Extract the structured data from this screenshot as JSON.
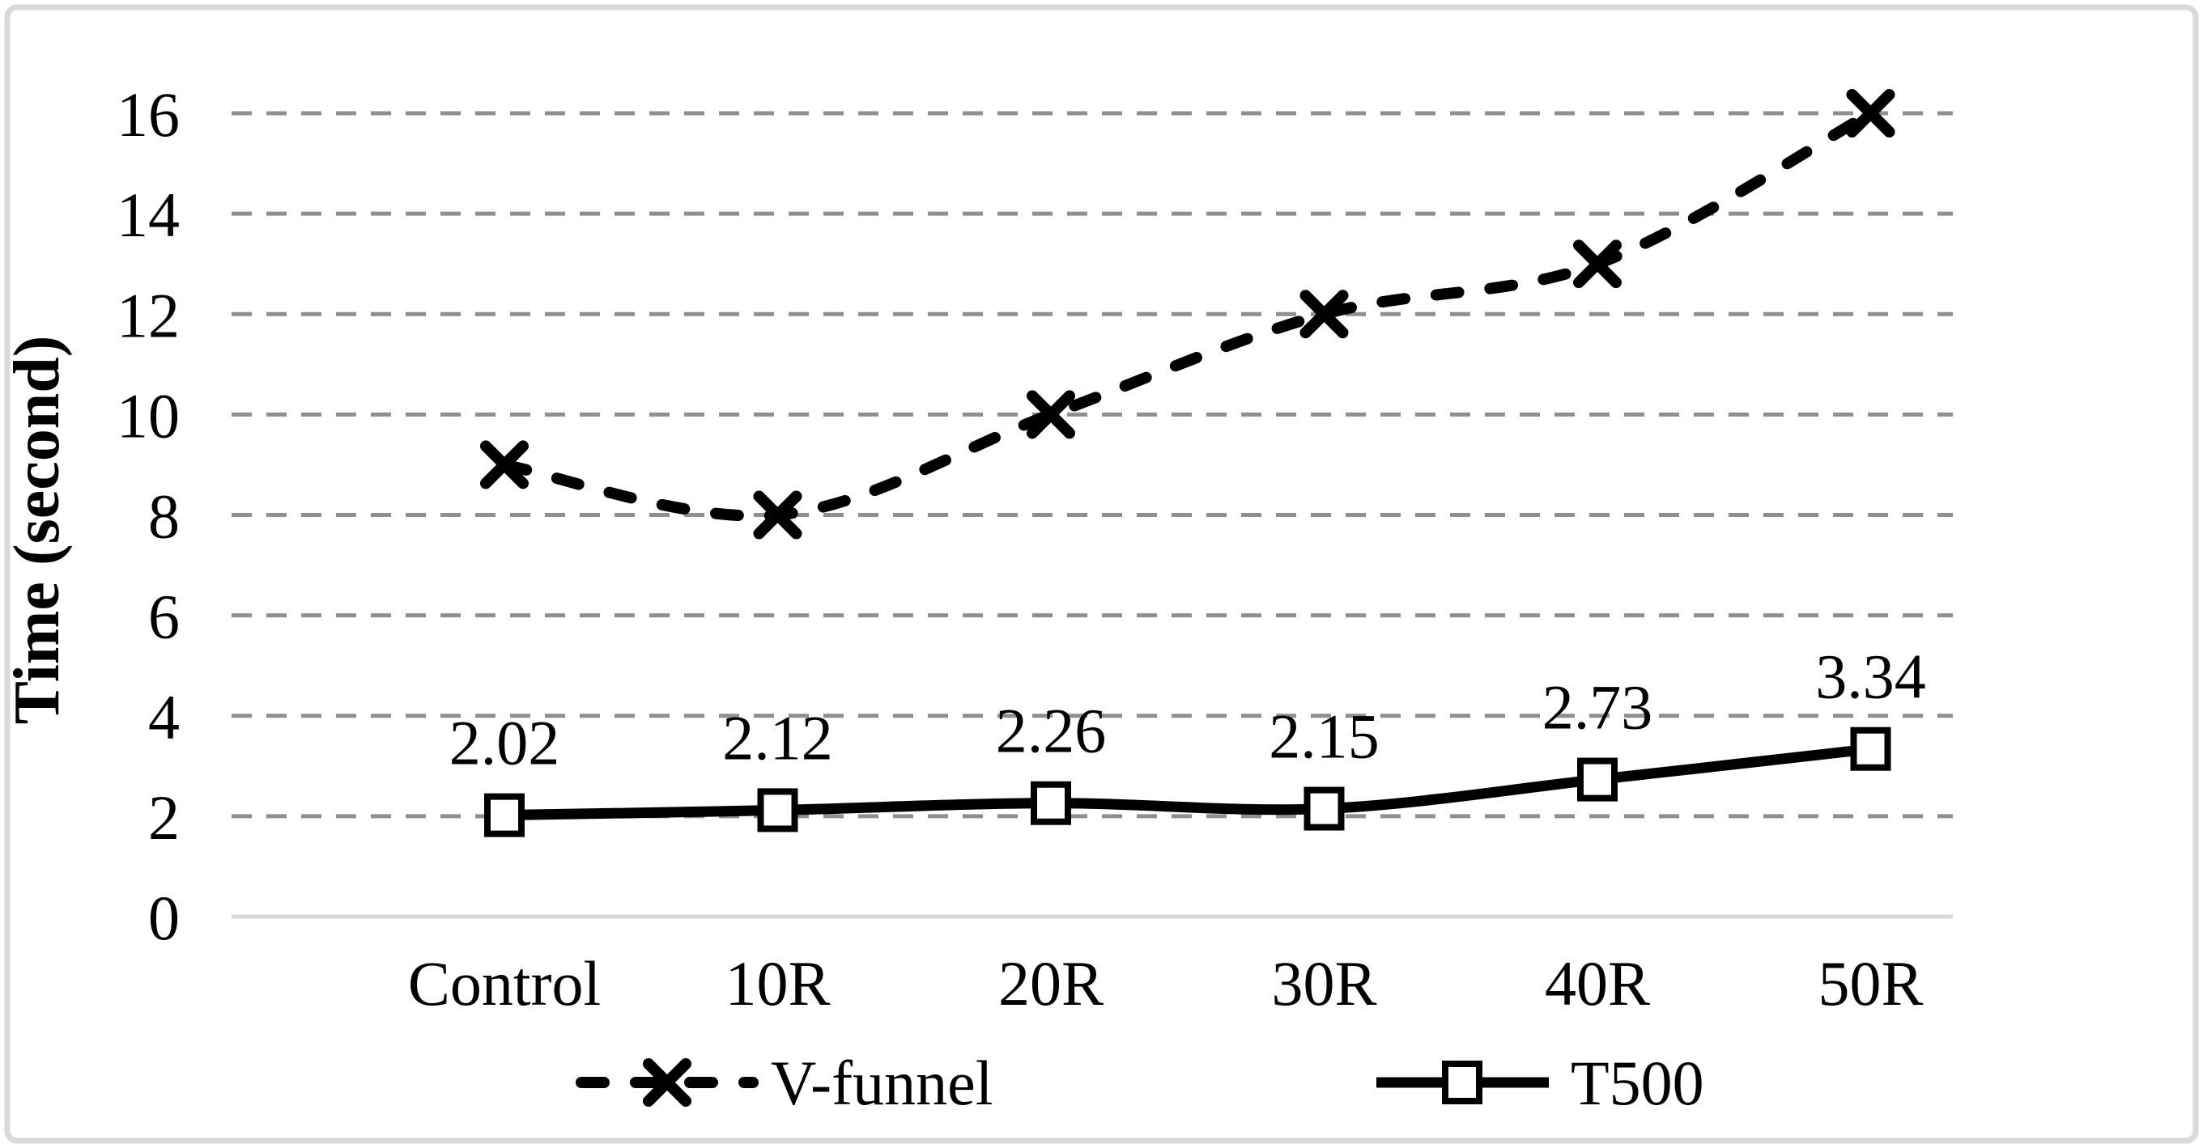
{
  "figure": {
    "background_color": "#ffffff",
    "border_color": "#d9d9d9",
    "text_color": "#000000"
  },
  "chart_data": {
    "type": "line",
    "title": "",
    "xlabel": "",
    "ylabel": "Time (second)",
    "categories": [
      "Control",
      "10R",
      "20R",
      "30R",
      "40R",
      "50R"
    ],
    "yticks": [
      0,
      2,
      4,
      6,
      8,
      10,
      12,
      14,
      16
    ],
    "ylim": [
      0,
      16
    ],
    "grid": "horizontal dashed gridlines on",
    "gridline_color": "#8f8f8f",
    "axis_line_color": "#d9d9d9",
    "legend_position": "bottom",
    "series": [
      {
        "name": "V-funnel",
        "values": [
          9,
          8,
          10,
          12,
          13,
          16
        ],
        "color": "#000000",
        "line_style": "dashed",
        "marker": "x",
        "smooth": true,
        "data_labels": []
      },
      {
        "name": "T500",
        "values": [
          2.02,
          2.12,
          2.26,
          2.15,
          2.73,
          3.34
        ],
        "color": "#000000",
        "line_style": "solid",
        "marker": "open-square",
        "smooth": true,
        "data_labels": [
          "2.02",
          "2.12",
          "2.26",
          "2.15",
          "2.73",
          "3.34"
        ]
      }
    ]
  }
}
